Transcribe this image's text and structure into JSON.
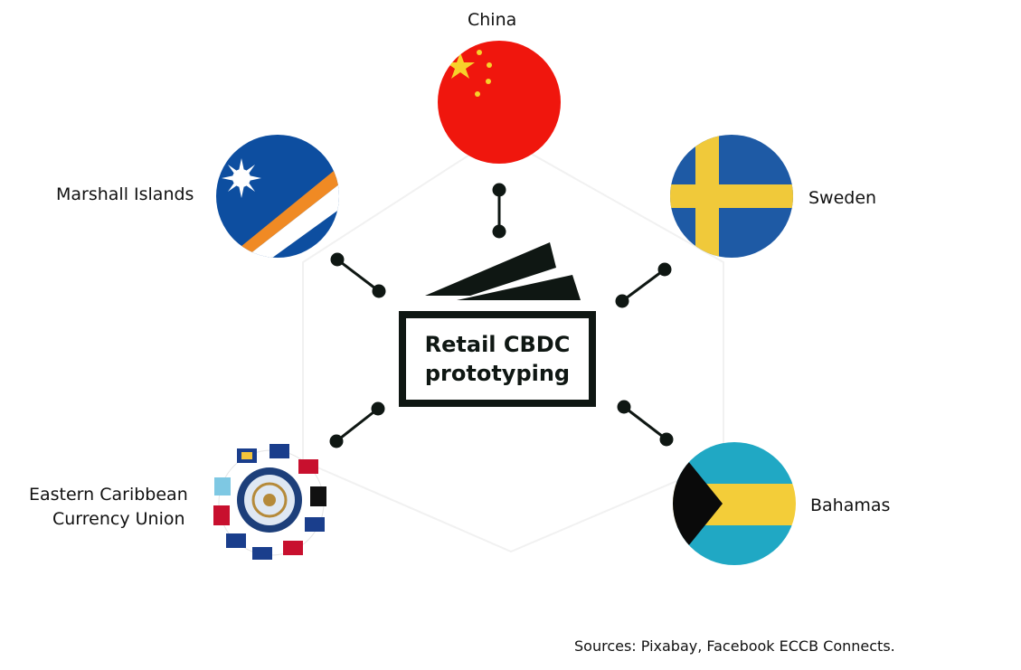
{
  "center": {
    "line1": "Retail CBDC",
    "line2": "prototyping"
  },
  "nodes": [
    {
      "id": "china",
      "label": "China",
      "icon": "china-flag-icon"
    },
    {
      "id": "marshall",
      "label": "Marshall Islands",
      "icon": "marshall-islands-flag-icon"
    },
    {
      "id": "sweden",
      "label": "Sweden",
      "icon": "sweden-flag-icon"
    },
    {
      "id": "eccu",
      "label_line1": "Eastern Caribbean",
      "label_line2": "Currency Union",
      "icon": "eccb-seal-icon"
    },
    {
      "id": "bahamas",
      "label": "Bahamas",
      "icon": "bahamas-flag-icon"
    }
  ],
  "sources": "Sources: Pixabay, Facebook ECCB Connects.",
  "colors": {
    "dark": "#0f1713",
    "china_red": "#f0160d",
    "china_yellow": "#f7d12a",
    "marshall_blue": "#0d4ea0",
    "marshall_orange": "#f08a24",
    "sweden_blue": "#1e5aa5",
    "sweden_yellow": "#f0c93a",
    "bahamas_aqua": "#20a8c4",
    "bahamas_yellow": "#f3cd39"
  }
}
